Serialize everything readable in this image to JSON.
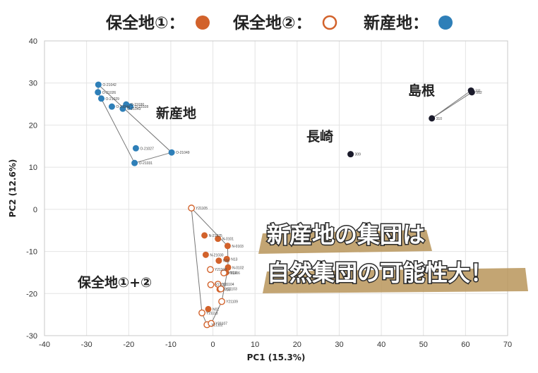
{
  "legend": {
    "items": [
      {
        "label": "保全地①：",
        "marker": "filled",
        "color": "#d2622b"
      },
      {
        "label": "保全地②：",
        "marker": "open",
        "color": "#d2622b"
      },
      {
        "label": "新産地：",
        "marker": "filled",
        "color": "#2e7fb8"
      }
    ]
  },
  "banner": {
    "line1": "新産地の集団は",
    "line2": "自然集団の可能性大！"
  },
  "group_labels": {
    "new_site": "新産地",
    "nagasaki": "長崎",
    "shimane": "島根",
    "conserved": "保全地①+②"
  },
  "colors": {
    "orange": "#d2622b",
    "blue": "#2e7fb8",
    "black": "#1a1a2a",
    "banner_gold": "#b8955a"
  },
  "chart_data": {
    "type": "scatter",
    "xlabel": "PC1 (15.3%)",
    "ylabel": "PC2 (12.6%)",
    "xlim": [
      -40,
      70
    ],
    "ylim": [
      -30,
      40
    ],
    "xticks": [
      -40,
      -30,
      -20,
      -10,
      0,
      10,
      20,
      30,
      40,
      50,
      60,
      70
    ],
    "yticks": [
      40,
      30,
      20,
      10,
      0,
      -10,
      -20,
      -30
    ],
    "grid": true,
    "series": [
      {
        "name": "新産地",
        "marker": "filled",
        "color": "#2e7fb8",
        "hull": [
          [
            -27.2,
            29.6
          ],
          [
            -9.8,
            13.5
          ],
          [
            -18.6,
            11.0
          ],
          [
            -27.3,
            27.8
          ]
        ],
        "points": [
          {
            "label": "O-21042",
            "x": -27.2,
            "y": 29.6
          },
          {
            "label": "O-21026",
            "x": -27.3,
            "y": 27.8
          },
          {
            "label": "O-21029",
            "x": -26.5,
            "y": 26.3
          },
          {
            "label": "O-21044",
            "x": -24.0,
            "y": 24.4
          },
          {
            "label": "O-21030",
            "x": -20.6,
            "y": 24.9
          },
          {
            "label": "O-21028",
            "x": -19.6,
            "y": 24.4
          },
          {
            "label": "O-21043",
            "x": -21.4,
            "y": 23.9
          },
          {
            "label": "O-21027",
            "x": -18.3,
            "y": 14.5
          },
          {
            "label": "O-21049",
            "x": -9.8,
            "y": 13.5
          },
          {
            "label": "O-21031",
            "x": -18.6,
            "y": 11.0
          }
        ]
      },
      {
        "name": "保全地①",
        "marker": "filled",
        "color": "#d2622b",
        "points": [
          {
            "label": "N-21025",
            "x": -2.0,
            "y": -6.2
          },
          {
            "label": "N-0101",
            "x": 1.2,
            "y": -7.0
          },
          {
            "label": "N-0103",
            "x": 3.5,
            "y": -8.7
          },
          {
            "label": "N-21030",
            "x": -1.7,
            "y": -10.8
          },
          {
            "label": "N16",
            "x": 1.4,
            "y": -12.2
          },
          {
            "label": "N13",
            "x": 3.3,
            "y": -11.8
          },
          {
            "label": "N-0102",
            "x": 3.6,
            "y": -13.8
          },
          {
            "label": "N14",
            "x": 3.1,
            "y": -15.0
          },
          {
            "label": "N15",
            "x": 1.6,
            "y": -19.0
          },
          {
            "label": "N02",
            "x": -1.1,
            "y": -23.7
          }
        ]
      },
      {
        "name": "保全地②",
        "marker": "open",
        "color": "#d2622b",
        "hull": [
          [
            -5.1,
            0.3
          ],
          [
            3.5,
            -8.7
          ],
          [
            3.6,
            -13.8
          ],
          [
            2.1,
            -21.9
          ],
          [
            -0.4,
            -27.1
          ],
          [
            -1.4,
            -27.4
          ],
          [
            -2.6,
            -24.6
          ]
        ],
        "points": [
          {
            "label": "Y21105",
            "x": -5.1,
            "y": 0.3
          },
          {
            "label": "Y21108",
            "x": -0.6,
            "y": -14.3
          },
          {
            "label": "Y21106",
            "x": 2.6,
            "y": -15.1
          },
          {
            "label": "Y21110",
            "x": -0.5,
            "y": -17.9
          },
          {
            "label": "Y21104",
            "x": 1.2,
            "y": -17.8
          },
          {
            "label": "Y21103",
            "x": 1.9,
            "y": -18.9
          },
          {
            "label": "Y21109",
            "x": 2.1,
            "y": -21.9
          },
          {
            "label": "Y21113",
            "x": -2.6,
            "y": -24.6
          },
          {
            "label": "Y21112",
            "x": -1.4,
            "y": -27.4
          },
          {
            "label": "Y21107",
            "x": -0.4,
            "y": -27.1
          }
        ]
      },
      {
        "name": "長崎",
        "marker": "filled",
        "color": "#1a1a2a",
        "points": [
          {
            "label": "309",
            "x": 32.7,
            "y": 13.1
          }
        ]
      },
      {
        "name": "島根",
        "marker": "filled",
        "color": "#1a1a2a",
        "hull": [
          [
            52.0,
            21.6
          ],
          [
            61.3,
            28.2
          ],
          [
            61.5,
            27.8
          ]
        ],
        "points": [
          {
            "label": "310",
            "x": 52.0,
            "y": 21.6
          },
          {
            "label": "311",
            "x": 61.3,
            "y": 28.2
          },
          {
            "label": "312",
            "x": 61.5,
            "y": 27.8
          }
        ]
      }
    ]
  }
}
